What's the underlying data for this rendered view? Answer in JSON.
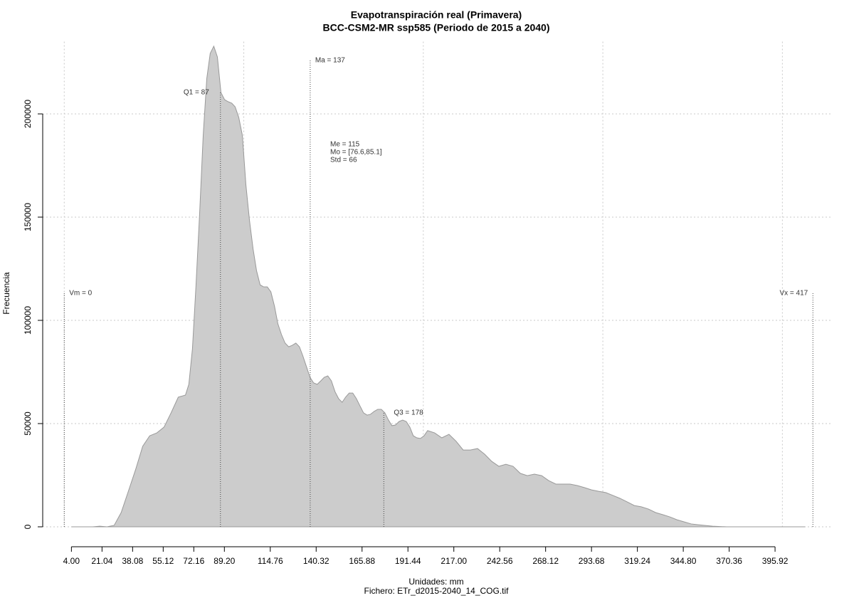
{
  "chart_data": {
    "type": "area",
    "title": "Evapotranspiración real (Primavera)",
    "subtitle": "BCC-CSM2-MR ssp585 (Periodo de 2015 a 2040)",
    "xlabel": "Unidades: mm",
    "caption": "Fichero: ETr_d2015-2040_14_COG.tif",
    "ylabel": "Frecuencia",
    "xlim": [
      -12,
      428
    ],
    "ylim": [
      -5000,
      235000
    ],
    "xticks": [
      {
        "value": 4,
        "label": "4.00"
      },
      21.04,
      38.08,
      55.12,
      72.16,
      {
        "value": 89.2,
        "label": "89.20"
      },
      114.76,
      140.32,
      165.88,
      191.44,
      {
        "value": 217,
        "label": "217.00"
      },
      242.56,
      268.12,
      293.68,
      319.24,
      {
        "value": 344.8,
        "label": "344.80"
      },
      370.36,
      395.92
    ],
    "yticks": [
      0,
      50000,
      100000,
      150000,
      200000
    ],
    "xgrid": [
      0,
      100,
      200,
      300,
      400
    ],
    "grid": true,
    "fill": "#cccccc",
    "stroke": "#999999",
    "x": [
      4.0,
      15.9,
      19.8,
      23.8,
      27.8,
      31.7,
      35.7,
      39.7,
      43.7,
      47.6,
      51.6,
      55.6,
      59.5,
      63.5,
      67.5,
      69.4,
      71.4,
      73.4,
      75.4,
      77.4,
      79.4,
      81.3,
      83.3,
      85.3,
      87.3,
      89.3,
      91.3,
      93.3,
      95.2,
      97.2,
      99.2,
      101.2,
      103.2,
      105.2,
      107.1,
      109.1,
      111.1,
      113.1,
      115.1,
      117.1,
      119.0,
      121.0,
      123.0,
      125.0,
      127.0,
      129.0,
      131.0,
      132.9,
      134.9,
      136.9,
      138.9,
      140.9,
      142.9,
      144.8,
      146.8,
      148.8,
      150.8,
      152.8,
      154.8,
      156.7,
      158.7,
      160.7,
      162.7,
      164.7,
      166.7,
      168.7,
      170.6,
      172.6,
      174.6,
      176.6,
      178.6,
      180.6,
      182.5,
      184.5,
      186.5,
      188.5,
      190.5,
      192.5,
      194.4,
      196.4,
      198.4,
      200.4,
      202.4,
      206.3,
      210.3,
      214.3,
      218.3,
      222.2,
      226.2,
      230.2,
      234.1,
      238.1,
      242.1,
      246.0,
      250.0,
      254.0,
      257.9,
      261.9,
      265.9,
      269.8,
      273.8,
      277.8,
      281.7,
      285.7,
      289.7,
      293.7,
      297.6,
      301.6,
      305.6,
      309.5,
      313.5,
      317.5,
      321.4,
      325.4,
      329.4,
      333.3,
      337.3,
      341.3,
      345.2,
      349.2,
      353.2,
      361.1,
      369.0,
      412.7
    ],
    "values": [
      0,
      0,
      300,
      0,
      700,
      6900,
      17200,
      27600,
      39000,
      44100,
      45500,
      48300,
      55200,
      62800,
      63800,
      69000,
      86200,
      117200,
      151700,
      189700,
      217200,
      229300,
      232800,
      227600,
      210300,
      206900,
      205900,
      205200,
      203400,
      198300,
      189700,
      165500,
      148300,
      134500,
      124100,
      117200,
      116200,
      116200,
      113800,
      106900,
      98300,
      93100,
      89000,
      87200,
      87900,
      89000,
      87200,
      82800,
      77600,
      72400,
      69700,
      69000,
      70700,
      72400,
      73100,
      70700,
      65500,
      62100,
      60300,
      62800,
      64800,
      64800,
      62100,
      58600,
      55200,
      54100,
      54500,
      55900,
      56900,
      56900,
      55200,
      51700,
      49000,
      49300,
      51000,
      51700,
      51000,
      48300,
      44100,
      43100,
      42800,
      44100,
      46600,
      45500,
      43100,
      44800,
      41400,
      37200,
      37200,
      37900,
      35200,
      31700,
      29300,
      30300,
      29300,
      25900,
      24800,
      25500,
      24800,
      22400,
      20700,
      20700,
      20700,
      20000,
      19000,
      17900,
      17200,
      16600,
      15200,
      13800,
      12100,
      10300,
      9700,
      8600,
      6900,
      5900,
      4800,
      3400,
      2400,
      1400,
      1000,
      300,
      0,
      0
    ],
    "annotations": [
      {
        "label": "Vm = 0",
        "value": 0
      },
      {
        "label": "Q1 = 87",
        "value": 87
      },
      {
        "label": "Ma = 137",
        "value": 137
      },
      {
        "label": "Q3 = 178",
        "value": 178
      },
      {
        "label": "Vx = 417",
        "value": 417
      }
    ],
    "stats": [
      "Me = 115",
      "Mo = [76.6,85.1]",
      "Std = 66"
    ]
  }
}
